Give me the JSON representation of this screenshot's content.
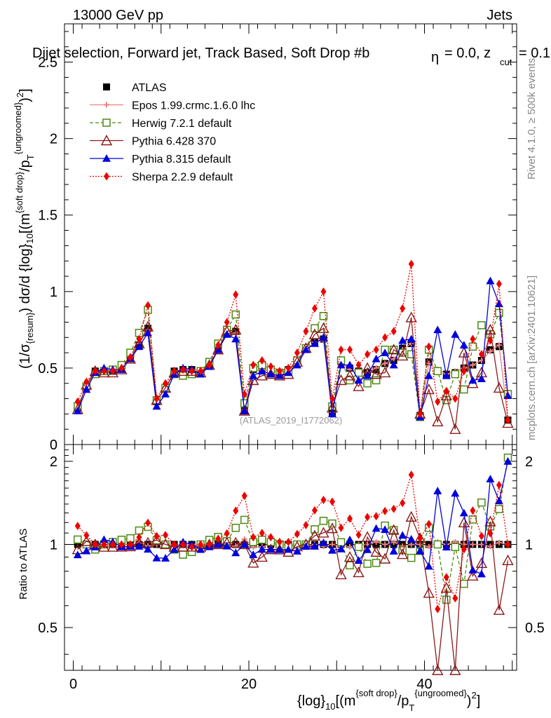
{
  "header": {
    "left": "13000 GeV pp",
    "right": "Jets",
    "title": "Dijet selection, Forward jet, Track Based, Soft Drop #b",
    "title_tail": "= 0.0, z",
    "eta_symbol": "η",
    "cut_sub": "cut",
    "tail_end": "= 0.1",
    "ref": "(ATLAS_2019_I1772062)"
  },
  "side": {
    "rivet": "Rivet 4.1.0, ≥ 500k events",
    "mcplots": "mcplots.cern.ch [arXiv:2401.10621]"
  },
  "axes": {
    "main_ylabel": "(1/σ_{resum}) dσ/d {log}_{10}[(m^{soft drop}/p_T^{ungroomed})^{2}]",
    "ratio_ylabel": "Ratio to ATLAS",
    "xlabel": "{log}_{10}[(m^{soft drop}/p_T^{ungroomed})^{2}]",
    "main_yticks": [
      "0",
      "0.5",
      "1",
      "1.5",
      "2",
      "2.5"
    ],
    "ratio_yticks": [
      "0.5",
      "1",
      "2"
    ],
    "xticks": [
      "0",
      "20",
      "40"
    ]
  },
  "chart_data": {
    "type": "line",
    "x": [
      0.5,
      1.5,
      2.5,
      3.5,
      4.5,
      5.5,
      6.5,
      7.5,
      8.5,
      9.5,
      10.5,
      11.5,
      12.5,
      13.5,
      14.5,
      15.5,
      16.5,
      17.5,
      18.5,
      19.5,
      20.5,
      21.5,
      22.5,
      23.5,
      24.5,
      25.5,
      26.5,
      27.5,
      28.5,
      29.5,
      30.5,
      31.5,
      32.5,
      33.5,
      34.5,
      35.5,
      36.5,
      37.5,
      38.5,
      39.5,
      40.5,
      41.5,
      42.5,
      43.5,
      44.5,
      45.5,
      46.5,
      47.5,
      48.5,
      49.5
    ],
    "xlim": [
      -1,
      50.5
    ],
    "ylim": [
      0,
      2.75
    ],
    "ratio_ylim": [
      0.35,
      2.3
    ],
    "ratio_scale": "log",
    "legend": [
      {
        "name": "ATLAS",
        "color": "#000000",
        "marker": "square",
        "dash": "none"
      },
      {
        "name": "Epos 1.99.crmc.1.6.0 lhc",
        "color": "#f08080",
        "marker": "cross",
        "dash": "solid"
      },
      {
        "name": "Herwig 7.2.1 default",
        "color": "#4d8a10",
        "marker": "open-square",
        "dash": "dashed"
      },
      {
        "name": "Pythia 6.428 370",
        "color": "#8b1a1a",
        "marker": "open-triangle",
        "dash": "solid"
      },
      {
        "name": "Pythia 8.315 default",
        "color": "#0000dd",
        "marker": "triangle",
        "dash": "solid"
      },
      {
        "name": "Sherpa 2.2.9 default",
        "color": "#ee0000",
        "marker": "diamond",
        "dash": "dotted"
      }
    ],
    "series": [
      {
        "name": "ATLAS",
        "values": [
          0.24,
          0.38,
          0.48,
          0.48,
          0.48,
          0.5,
          0.57,
          0.65,
          0.76,
          0.28,
          0.37,
          0.48,
          0.49,
          0.49,
          0.48,
          0.52,
          0.62,
          0.73,
          0.74,
          0.22,
          0.49,
          0.5,
          0.48,
          0.47,
          0.49,
          0.55,
          0.63,
          0.67,
          0.69,
          0.21,
          0.54,
          0.5,
          0.48,
          0.47,
          0.49,
          0.53,
          0.55,
          0.63,
          0.66,
          0.19,
          0.54,
          0.48,
          0.46,
          0.47,
          0.5,
          0.52,
          0.55,
          0.62,
          0.64,
          0.16
        ]
      },
      {
        "name": "Epos 1.99.crmc.1.6.0 lhc",
        "values": [
          0.25,
          0.38,
          0.47,
          0.48,
          0.48,
          0.5,
          0.57,
          0.66,
          0.75,
          0.28,
          0.37,
          0.48,
          0.49,
          0.49,
          0.48,
          0.52,
          0.62,
          0.72,
          0.73,
          0.23,
          0.48,
          0.49,
          0.48,
          0.47,
          0.49,
          0.55,
          0.62,
          0.67,
          0.68,
          0.21,
          0.53,
          0.49,
          0.48,
          0.47,
          0.5,
          0.53,
          0.56,
          0.62,
          0.66,
          0.19,
          0.53,
          0.49,
          0.46,
          0.48,
          0.5,
          0.52,
          0.55,
          0.61,
          0.65,
          0.16
        ]
      },
      {
        "name": "Herwig 7.2.1 default",
        "values": [
          0.25,
          0.38,
          0.46,
          0.48,
          0.49,
          0.52,
          0.6,
          0.73,
          0.88,
          0.29,
          0.37,
          0.46,
          0.45,
          0.46,
          0.48,
          0.54,
          0.66,
          0.75,
          0.85,
          0.27,
          0.5,
          0.52,
          0.49,
          0.47,
          0.48,
          0.55,
          0.63,
          0.76,
          0.84,
          0.25,
          0.55,
          0.42,
          0.47,
          0.4,
          0.42,
          0.62,
          0.62,
          0.6,
          0.59,
          0.18,
          0.62,
          0.48,
          0.29,
          0.46,
          0.36,
          0.64,
          0.78,
          0.72,
          0.86,
          0.33
        ]
      },
      {
        "name": "Pythia 6.428 370",
        "values": [
          0.23,
          0.39,
          0.48,
          0.47,
          0.47,
          0.49,
          0.56,
          0.66,
          0.77,
          0.29,
          0.37,
          0.47,
          0.48,
          0.48,
          0.47,
          0.52,
          0.62,
          0.74,
          0.75,
          0.22,
          0.42,
          0.45,
          0.46,
          0.45,
          0.46,
          0.54,
          0.63,
          0.72,
          0.76,
          0.24,
          0.42,
          0.45,
          0.38,
          0.5,
          0.46,
          0.47,
          0.62,
          0.58,
          0.83,
          0.2,
          0.36,
          0.15,
          0.32,
          0.1,
          0.6,
          0.4,
          0.47,
          0.75,
          0.37,
          0.14
        ]
      },
      {
        "name": "Pythia 8.315 default",
        "values": [
          0.22,
          0.36,
          0.47,
          0.5,
          0.49,
          0.49,
          0.56,
          0.64,
          0.73,
          0.25,
          0.33,
          0.46,
          0.5,
          0.49,
          0.46,
          0.51,
          0.62,
          0.72,
          0.69,
          0.22,
          0.45,
          0.48,
          0.46,
          0.45,
          0.47,
          0.52,
          0.62,
          0.66,
          0.7,
          0.2,
          0.52,
          0.52,
          0.42,
          0.45,
          0.56,
          0.6,
          0.52,
          0.68,
          0.69,
          0.18,
          0.45,
          0.75,
          0.45,
          0.72,
          0.65,
          0.42,
          0.43,
          1.07,
          0.92,
          0.32
        ]
      },
      {
        "name": "Sherpa 2.2.9 default",
        "values": [
          0.28,
          0.41,
          0.48,
          0.48,
          0.48,
          0.5,
          0.57,
          0.69,
          0.91,
          0.3,
          0.4,
          0.48,
          0.49,
          0.48,
          0.48,
          0.52,
          0.65,
          0.8,
          0.98,
          0.33,
          0.52,
          0.55,
          0.51,
          0.48,
          0.5,
          0.6,
          0.74,
          0.89,
          1.0,
          0.3,
          0.62,
          0.62,
          0.52,
          0.59,
          0.62,
          0.7,
          0.74,
          0.89,
          1.18,
          0.2,
          0.64,
          0.28,
          0.35,
          0.3,
          0.48,
          0.69,
          0.59,
          0.68,
          1.05,
          0.16
        ]
      }
    ]
  }
}
